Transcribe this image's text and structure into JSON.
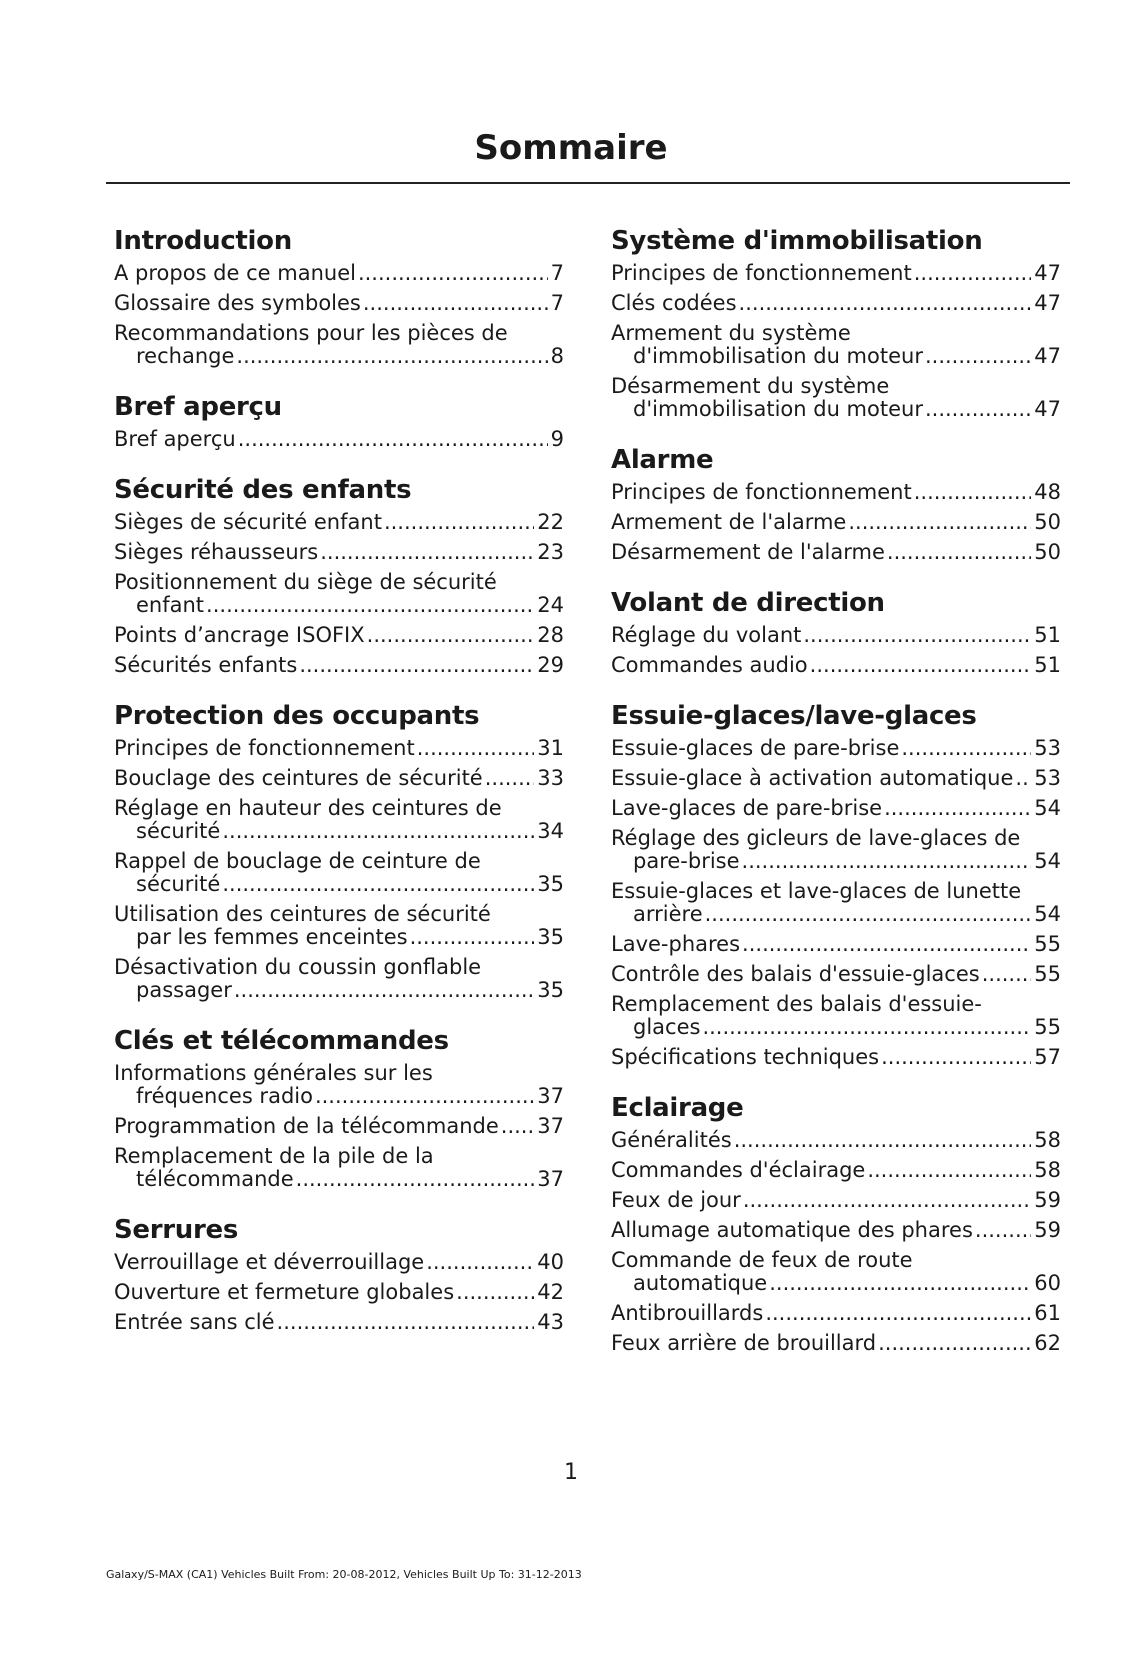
{
  "header": {
    "title": "Sommaire"
  },
  "columns": [
    {
      "sections": [
        {
          "heading": "Introduction",
          "entries": [
            {
              "title": "A propos de ce manuel",
              "page": 7
            },
            {
              "title": "Glossaire des symboles",
              "page": 7
            },
            {
              "title": "Recommandations pour les pièces de rechange",
              "page": 8
            }
          ]
        },
        {
          "heading": "Bref aperçu",
          "entries": [
            {
              "title": "Bref aperçu",
              "page": 9
            }
          ]
        },
        {
          "heading": "Sécurité des enfants",
          "entries": [
            {
              "title": "Sièges de sécurité enfant",
              "page": 22
            },
            {
              "title": "Sièges réhausseurs",
              "page": 23
            },
            {
              "title": "Positionnement du siège de sécurité enfant",
              "page": 24
            },
            {
              "title": "Points d’ancrage ISOFIX",
              "page": 28
            },
            {
              "title": "Sécurités enfants",
              "page": 29
            }
          ]
        },
        {
          "heading": "Protection des occupants",
          "entries": [
            {
              "title": "Principes de fonctionnement",
              "page": 31
            },
            {
              "title": "Bouclage des ceintures de sécurité",
              "page": 33
            },
            {
              "title": "Réglage en hauteur des ceintures de sécurité",
              "page": 34
            },
            {
              "title": "Rappel de bouclage de ceinture de sécurité",
              "page": 35
            },
            {
              "title": "Utilisation des ceintures de sécurité par les femmes enceintes",
              "page": 35
            },
            {
              "title": "Désactivation du coussin gonflable passager",
              "page": 35
            }
          ]
        },
        {
          "heading": "Clés et télécommandes",
          "entries": [
            {
              "title": "Informations générales sur les fréquences radio",
              "page": 37
            },
            {
              "title": "Programmation de la télécommande",
              "page": 37
            },
            {
              "title": "Remplacement de la pile de la télécommande",
              "page": 37
            }
          ]
        },
        {
          "heading": "Serrures",
          "entries": [
            {
              "title": "Verrouillage et déverrouillage",
              "page": 40
            },
            {
              "title": "Ouverture et fermeture globales",
              "page": 42
            },
            {
              "title": "Entrée sans clé",
              "page": 43
            }
          ]
        }
      ]
    },
    {
      "sections": [
        {
          "heading": "Système d'immobilisation",
          "entries": [
            {
              "title": "Principes de fonctionnement",
              "page": 47
            },
            {
              "title": "Clés codées",
              "page": 47
            },
            {
              "title": "Armement du système d'immobilisation du moteur",
              "page": 47
            },
            {
              "title": "Désarmement du système d'immobilisation du moteur",
              "page": 47
            }
          ]
        },
        {
          "heading": "Alarme",
          "entries": [
            {
              "title": "Principes de fonctionnement",
              "page": 48
            },
            {
              "title": "Armement de l'alarme",
              "page": 50
            },
            {
              "title": "Désarmement de l'alarme",
              "page": 50
            }
          ]
        },
        {
          "heading": "Volant de direction",
          "entries": [
            {
              "title": "Réglage du volant",
              "page": 51
            },
            {
              "title": "Commandes audio",
              "page": 51
            }
          ]
        },
        {
          "heading": "Essuie-glaces/lave-glaces",
          "entries": [
            {
              "title": "Essuie-glaces de pare-brise",
              "page": 53
            },
            {
              "title": "Essuie-glace à activation automatique",
              "page": 53
            },
            {
              "title": "Lave-glaces de pare-brise",
              "page": 54
            },
            {
              "title": "Réglage des gicleurs de lave-glaces de pare-brise",
              "page": 54
            },
            {
              "title": "Essuie-glaces et lave-glaces de lunette arrière",
              "page": 54
            },
            {
              "title": "Lave-phares",
              "page": 55
            },
            {
              "title": "Contrôle des balais d'essuie-glaces",
              "page": 55
            },
            {
              "title": "Remplacement des balais d'essuie-glaces",
              "page": 55
            },
            {
              "title": "Spécifications techniques",
              "page": 57
            }
          ]
        },
        {
          "heading": "Eclairage",
          "entries": [
            {
              "title": "Généralités",
              "page": 58
            },
            {
              "title": "Commandes d'éclairage",
              "page": 58
            },
            {
              "title": "Feux de jour",
              "page": 59
            },
            {
              "title": "Allumage automatique des phares",
              "page": 59
            },
            {
              "title": "Commande de feux de route automatique",
              "page": 60
            },
            {
              "title": "Antibrouillards",
              "page": 61
            },
            {
              "title": "Feux arrière de brouillard",
              "page": 62
            }
          ]
        }
      ]
    }
  ],
  "page_number": 1,
  "footer": "Galaxy/S-MAX (CA1) Vehicles Built From: 20-08-2012, Vehicles Built Up To: 31-12-2013"
}
